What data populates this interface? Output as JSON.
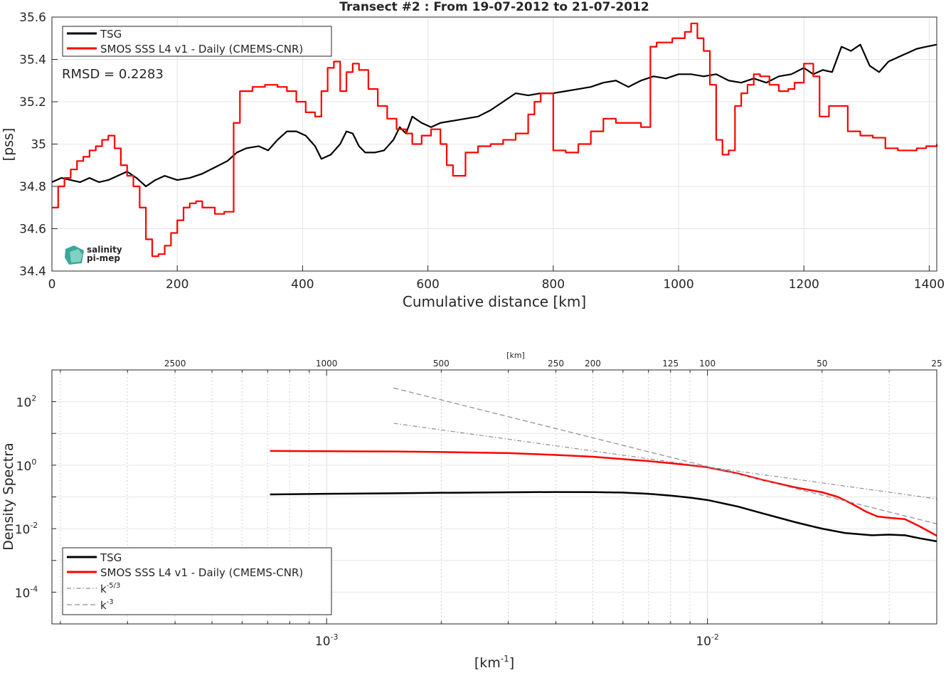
{
  "chart_data": [
    {
      "type": "line",
      "title": "Transect #2 : From 19-07-2012 to 21-07-2012",
      "xlabel": "Cumulative distance [km]",
      "ylabel": "[pss]",
      "xlim": [
        0,
        1412
      ],
      "ylim": [
        34.4,
        35.6
      ],
      "xticks": [
        0,
        200,
        400,
        600,
        800,
        1000,
        1200,
        1400
      ],
      "yticks": [
        34.4,
        34.6,
        34.8,
        35,
        35.2,
        35.4,
        35.6
      ],
      "ytick_labels": [
        "34.4",
        "34.6",
        "34.8",
        "35",
        "35.2",
        "35.4",
        "35.6"
      ],
      "grid": true,
      "legend_position": "top-left",
      "annotation": "RMSD = 0.2283",
      "logo": {
        "line1": "salinity",
        "line2": "pi-mep",
        "color": "#1a9a8a"
      },
      "series": [
        {
          "name": "TSG",
          "color": "#000000",
          "x": [
            0,
            15,
            30,
            45,
            60,
            75,
            90,
            105,
            120,
            135,
            150,
            165,
            180,
            200,
            220,
            240,
            260,
            280,
            295,
            310,
            330,
            345,
            360,
            375,
            390,
            405,
            420,
            430,
            445,
            460,
            470,
            480,
            490,
            500,
            515,
            530,
            545,
            555,
            565,
            575,
            590,
            605,
            620,
            640,
            660,
            680,
            700,
            720,
            740,
            760,
            780,
            800,
            820,
            840,
            860,
            880,
            900,
            920,
            940,
            960,
            980,
            1000,
            1020,
            1040,
            1060,
            1080,
            1100,
            1120,
            1140,
            1160,
            1180,
            1200,
            1215,
            1230,
            1245,
            1260,
            1275,
            1290,
            1305,
            1320,
            1335,
            1350,
            1365,
            1380,
            1395,
            1412
          ],
          "y": [
            34.82,
            34.84,
            34.83,
            34.82,
            34.84,
            34.82,
            34.83,
            34.85,
            34.87,
            34.84,
            34.8,
            34.83,
            34.85,
            34.83,
            34.84,
            34.86,
            34.89,
            34.92,
            34.96,
            34.98,
            34.99,
            34.97,
            35.02,
            35.06,
            35.06,
            35.04,
            34.99,
            34.93,
            34.95,
            35.0,
            35.06,
            35.05,
            34.99,
            34.96,
            34.96,
            34.97,
            35.02,
            35.08,
            35.05,
            35.13,
            35.1,
            35.08,
            35.1,
            35.11,
            35.12,
            35.13,
            35.16,
            35.2,
            35.24,
            35.23,
            35.24,
            35.24,
            35.25,
            35.26,
            35.27,
            35.29,
            35.3,
            35.27,
            35.3,
            35.32,
            35.31,
            35.33,
            35.33,
            35.32,
            35.33,
            35.3,
            35.29,
            35.31,
            35.29,
            35.32,
            35.33,
            35.36,
            35.33,
            35.35,
            35.34,
            35.46,
            35.44,
            35.47,
            35.37,
            35.34,
            35.39,
            35.41,
            35.43,
            35.45,
            35.46,
            35.47
          ]
        },
        {
          "name": "SMOS SSS L4 v1 - Daily (CMEMS-CNR)",
          "color": "#ff0000",
          "x": [
            0,
            10,
            20,
            30,
            40,
            50,
            60,
            70,
            80,
            90,
            100,
            110,
            120,
            130,
            140,
            150,
            160,
            170,
            180,
            190,
            200,
            210,
            220,
            230,
            240,
            260,
            275,
            290,
            300,
            320,
            340,
            360,
            375,
            390,
            405,
            420,
            430,
            440,
            450,
            460,
            470,
            480,
            490,
            505,
            520,
            535,
            550,
            565,
            575,
            590,
            605,
            620,
            630,
            640,
            660,
            680,
            700,
            720,
            740,
            760,
            770,
            780,
            800,
            820,
            840,
            860,
            880,
            900,
            920,
            940,
            955,
            965,
            990,
            1010,
            1020,
            1030,
            1040,
            1050,
            1060,
            1070,
            1080,
            1090,
            1100,
            1110,
            1120,
            1130,
            1145,
            1160,
            1175,
            1185,
            1200,
            1215,
            1225,
            1240,
            1255,
            1270,
            1290,
            1310,
            1330,
            1350,
            1365,
            1380,
            1395,
            1412
          ],
          "y": [
            34.7,
            34.8,
            34.84,
            34.88,
            34.92,
            34.94,
            34.97,
            34.99,
            35.02,
            35.04,
            34.98,
            34.9,
            34.85,
            34.8,
            34.7,
            34.55,
            34.47,
            34.48,
            34.52,
            34.58,
            34.64,
            34.7,
            34.72,
            34.73,
            34.7,
            34.67,
            34.68,
            35.1,
            35.25,
            35.27,
            35.28,
            35.27,
            35.25,
            35.2,
            35.15,
            35.13,
            35.25,
            35.36,
            35.39,
            35.25,
            35.34,
            35.38,
            35.35,
            35.26,
            35.18,
            35.12,
            35.07,
            35.05,
            35.0,
            35.04,
            35.07,
            35.0,
            34.9,
            34.85,
            34.96,
            34.99,
            35.0,
            35.02,
            35.05,
            35.14,
            35.2,
            35.24,
            34.97,
            34.96,
            35.0,
            35.06,
            35.12,
            35.1,
            35.1,
            35.08,
            35.46,
            35.48,
            35.5,
            35.53,
            35.57,
            35.5,
            35.44,
            35.28,
            35.02,
            34.95,
            34.97,
            35.18,
            35.24,
            35.28,
            35.33,
            35.32,
            35.28,
            35.25,
            35.26,
            35.29,
            35.38,
            35.32,
            35.13,
            35.18,
            35.18,
            35.06,
            35.04,
            35.03,
            34.98,
            34.97,
            34.97,
            34.98,
            34.99,
            35.0
          ]
        }
      ]
    },
    {
      "type": "line",
      "xscale": "log",
      "yscale": "log",
      "xlabel": "[km",
      "xlabel_sup": "-1",
      "xlabel_close": "]",
      "ylabel": "Density Spectra",
      "top_axis_label": "[km]",
      "top_ticks": [
        2500,
        1000,
        500,
        250,
        200,
        125,
        100,
        50,
        25
      ],
      "xlim": [
        0.00019,
        0.04
      ],
      "ylim": [
        1e-05,
        1000
      ],
      "xticks_major": [
        {
          "base": "10",
          "exp": "-3",
          "value": 0.001
        },
        {
          "base": "10",
          "exp": "-2",
          "value": 0.01
        }
      ],
      "yticks_major": [
        {
          "base": "10",
          "exp": "-4",
          "value": 0.0001
        },
        {
          "base": "10",
          "exp": "-2",
          "value": 0.01
        },
        {
          "base": "10",
          "exp": "0",
          "value": 1
        },
        {
          "base": "10",
          "exp": "2",
          "value": 100
        }
      ],
      "grid": true,
      "legend_position": "bottom-left",
      "legend": [
        {
          "label": "TSG",
          "style": "solid",
          "color": "#000000"
        },
        {
          "label": "SMOS SSS L4 v1 - Daily (CMEMS-CNR)",
          "style": "solid",
          "color": "#ff0000"
        },
        {
          "label": "k",
          "sup": "-5/3",
          "style": "dashdot",
          "color": "#8c8c96"
        },
        {
          "label": "k",
          "sup": "-3",
          "style": "dashed",
          "color": "#8c8c96"
        }
      ],
      "series": [
        {
          "name": "TSG",
          "color": "#000000",
          "x": [
            0.00071,
            0.001,
            0.0015,
            0.002,
            0.003,
            0.004,
            0.005,
            0.006,
            0.007,
            0.008,
            0.009,
            0.01,
            0.012,
            0.014,
            0.017,
            0.02,
            0.023,
            0.027,
            0.03,
            0.033,
            0.036,
            0.04
          ],
          "y": [
            0.12,
            0.125,
            0.13,
            0.135,
            0.14,
            0.143,
            0.142,
            0.137,
            0.125,
            0.11,
            0.095,
            0.08,
            0.05,
            0.03,
            0.016,
            0.01,
            0.0073,
            0.0062,
            0.0065,
            0.0062,
            0.005,
            0.004
          ]
        },
        {
          "name": "SMOS SSS L4 v1 - Daily (CMEMS-CNR)",
          "color": "#ff0000",
          "x": [
            0.00071,
            0.001,
            0.0015,
            0.002,
            0.003,
            0.004,
            0.005,
            0.006,
            0.007,
            0.008,
            0.009,
            0.01,
            0.012,
            0.014,
            0.017,
            0.02,
            0.022,
            0.024,
            0.026,
            0.028,
            0.03,
            0.033,
            0.036,
            0.04
          ],
          "y": [
            2.8,
            2.75,
            2.7,
            2.6,
            2.4,
            2.1,
            1.85,
            1.55,
            1.35,
            1.15,
            1.0,
            0.86,
            0.55,
            0.34,
            0.2,
            0.14,
            0.1,
            0.06,
            0.035,
            0.024,
            0.022,
            0.02,
            0.012,
            0.006
          ]
        },
        {
          "name": "k-5/3",
          "color": "#8c8c96",
          "x": [
            0.0015,
            0.04
          ],
          "y": [
            20.9,
            0.087
          ]
        },
        {
          "name": "k-3",
          "color": "#8c8c96",
          "x": [
            0.0015,
            0.04
          ],
          "y": [
            270.0,
            0.0142
          ]
        }
      ]
    }
  ]
}
